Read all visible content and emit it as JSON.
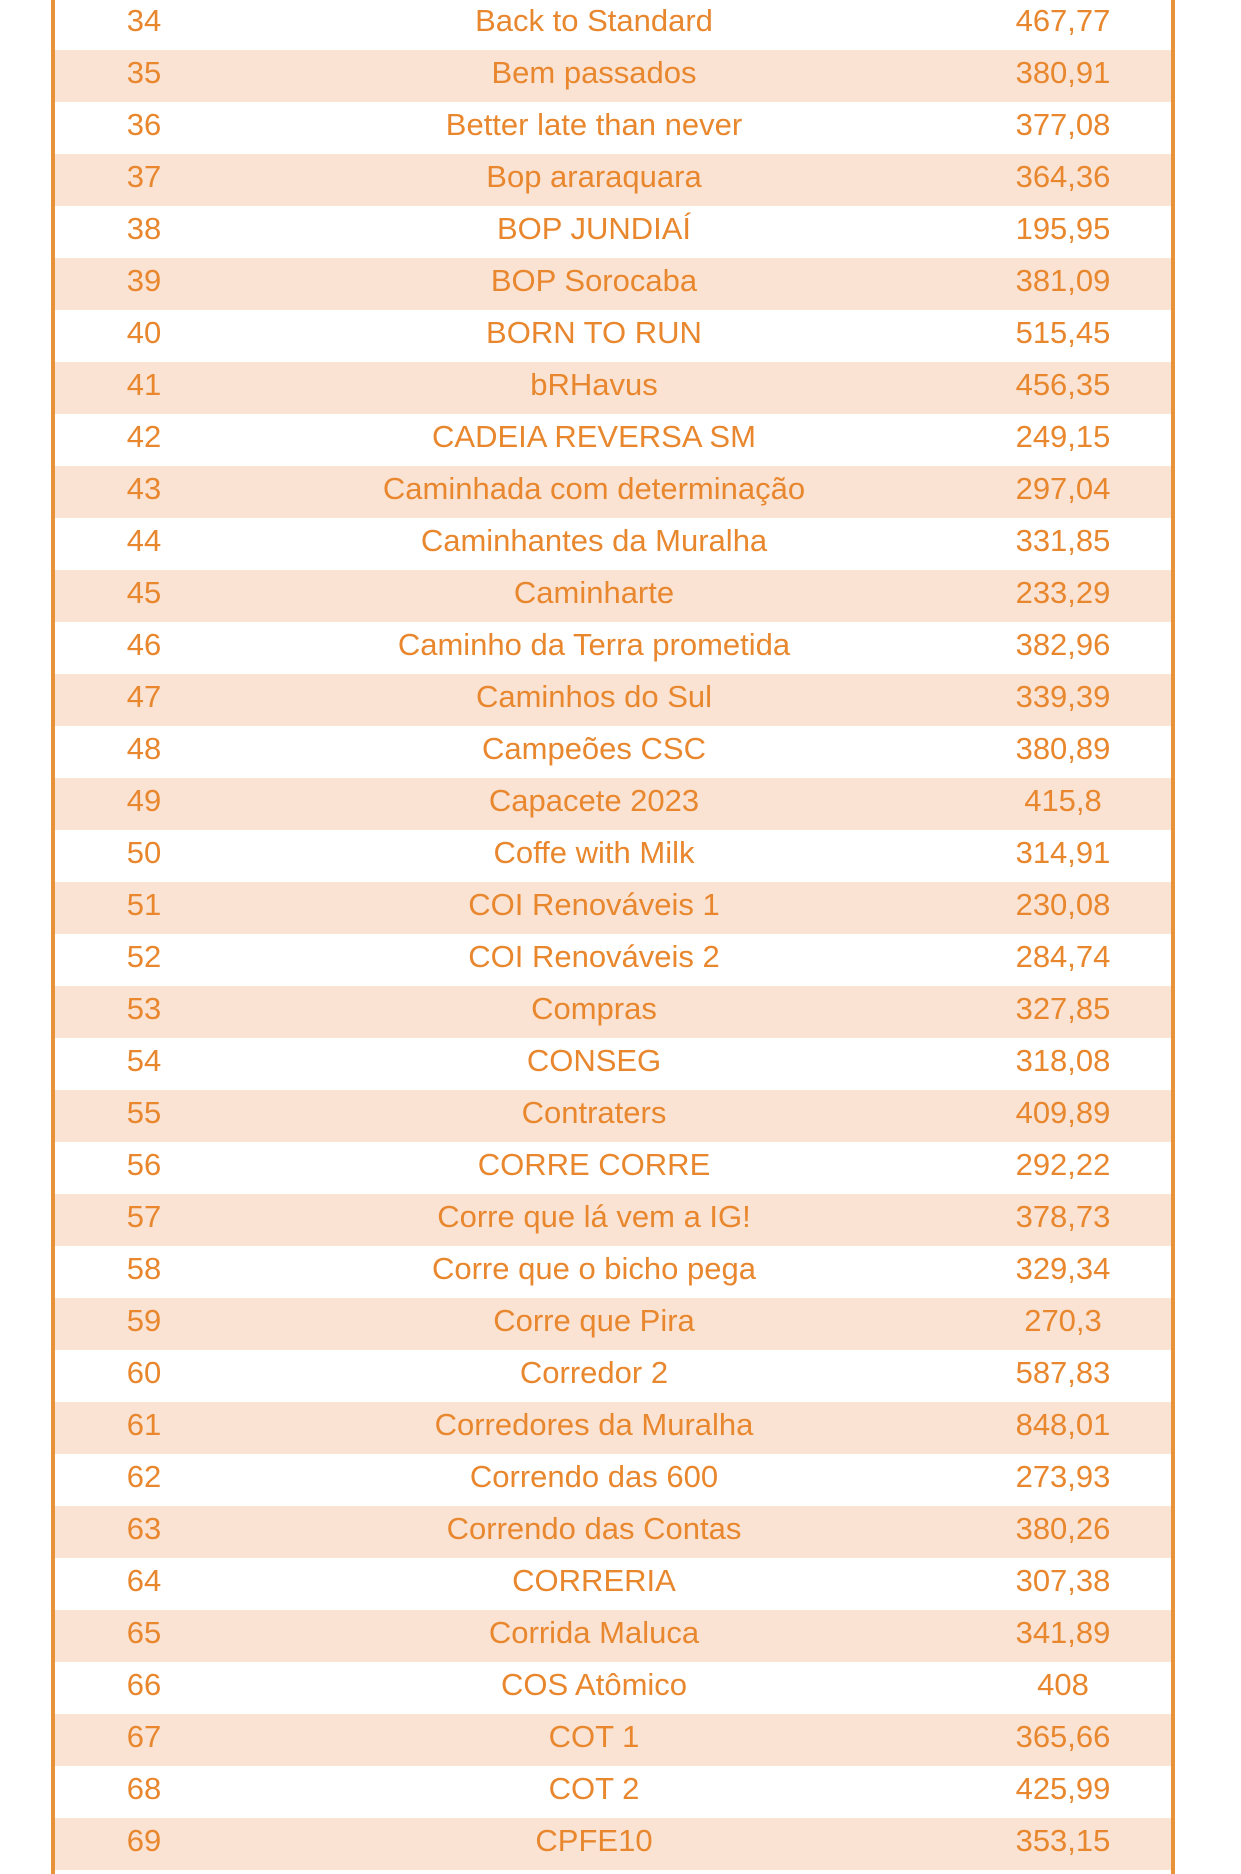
{
  "rows": [
    {
      "rank": "34",
      "team": "Back to Standard",
      "value": "467,77"
    },
    {
      "rank": "35",
      "team": "Bem passados",
      "value": "380,91"
    },
    {
      "rank": "36",
      "team": "Better late than never",
      "value": "377,08"
    },
    {
      "rank": "37",
      "team": "Bop araraquara",
      "value": "364,36"
    },
    {
      "rank": "38",
      "team": "BOP JUNDIAÍ",
      "value": "195,95"
    },
    {
      "rank": "39",
      "team": "BOP Sorocaba",
      "value": "381,09"
    },
    {
      "rank": "40",
      "team": "BORN TO RUN",
      "value": "515,45"
    },
    {
      "rank": "41",
      "team": "bRHavus",
      "value": "456,35"
    },
    {
      "rank": "42",
      "team": "CADEIA REVERSA SM",
      "value": "249,15"
    },
    {
      "rank": "43",
      "team": "Caminhada com determinação",
      "value": "297,04"
    },
    {
      "rank": "44",
      "team": "Caminhantes da Muralha",
      "value": "331,85"
    },
    {
      "rank": "45",
      "team": "Caminharte",
      "value": "233,29"
    },
    {
      "rank": "46",
      "team": "Caminho da Terra prometida",
      "value": "382,96"
    },
    {
      "rank": "47",
      "team": "Caminhos do Sul",
      "value": "339,39"
    },
    {
      "rank": "48",
      "team": "Campeões CSC",
      "value": "380,89"
    },
    {
      "rank": "49",
      "team": "Capacete 2023",
      "value": "415,8"
    },
    {
      "rank": "50",
      "team": "Coffe with Milk",
      "value": "314,91"
    },
    {
      "rank": "51",
      "team": "COI Renováveis 1",
      "value": "230,08"
    },
    {
      "rank": "52",
      "team": "COI Renováveis 2",
      "value": "284,74"
    },
    {
      "rank": "53",
      "team": "Compras",
      "value": "327,85"
    },
    {
      "rank": "54",
      "team": "CONSEG",
      "value": "318,08"
    },
    {
      "rank": "55",
      "team": "Contraters",
      "value": "409,89"
    },
    {
      "rank": "56",
      "team": "CORRE CORRE",
      "value": "292,22"
    },
    {
      "rank": "57",
      "team": "Corre que lá vem a IG!",
      "value": "378,73"
    },
    {
      "rank": "58",
      "team": "Corre que o bicho pega",
      "value": "329,34"
    },
    {
      "rank": "59",
      "team": "Corre que Pira",
      "value": "270,3"
    },
    {
      "rank": "60",
      "team": "Corredor 2",
      "value": "587,83"
    },
    {
      "rank": "61",
      "team": "Corredores da Muralha",
      "value": "848,01"
    },
    {
      "rank": "62",
      "team": "Correndo das 600",
      "value": "273,93"
    },
    {
      "rank": "63",
      "team": "Correndo das Contas",
      "value": "380,26"
    },
    {
      "rank": "64",
      "team": "CORRERIA",
      "value": "307,38"
    },
    {
      "rank": "65",
      "team": "Corrida Maluca",
      "value": "341,89"
    },
    {
      "rank": "66",
      "team": "COS Atômico",
      "value": "408"
    },
    {
      "rank": "67",
      "team": "COT 1",
      "value": "365,66"
    },
    {
      "rank": "68",
      "team": "COT 2",
      "value": "425,99"
    },
    {
      "rank": "69",
      "team": "CPFE10",
      "value": "353,15"
    }
  ],
  "colors": {
    "text": "#E8872E",
    "border": "#E8923A",
    "shade": "#FBE3D4"
  }
}
